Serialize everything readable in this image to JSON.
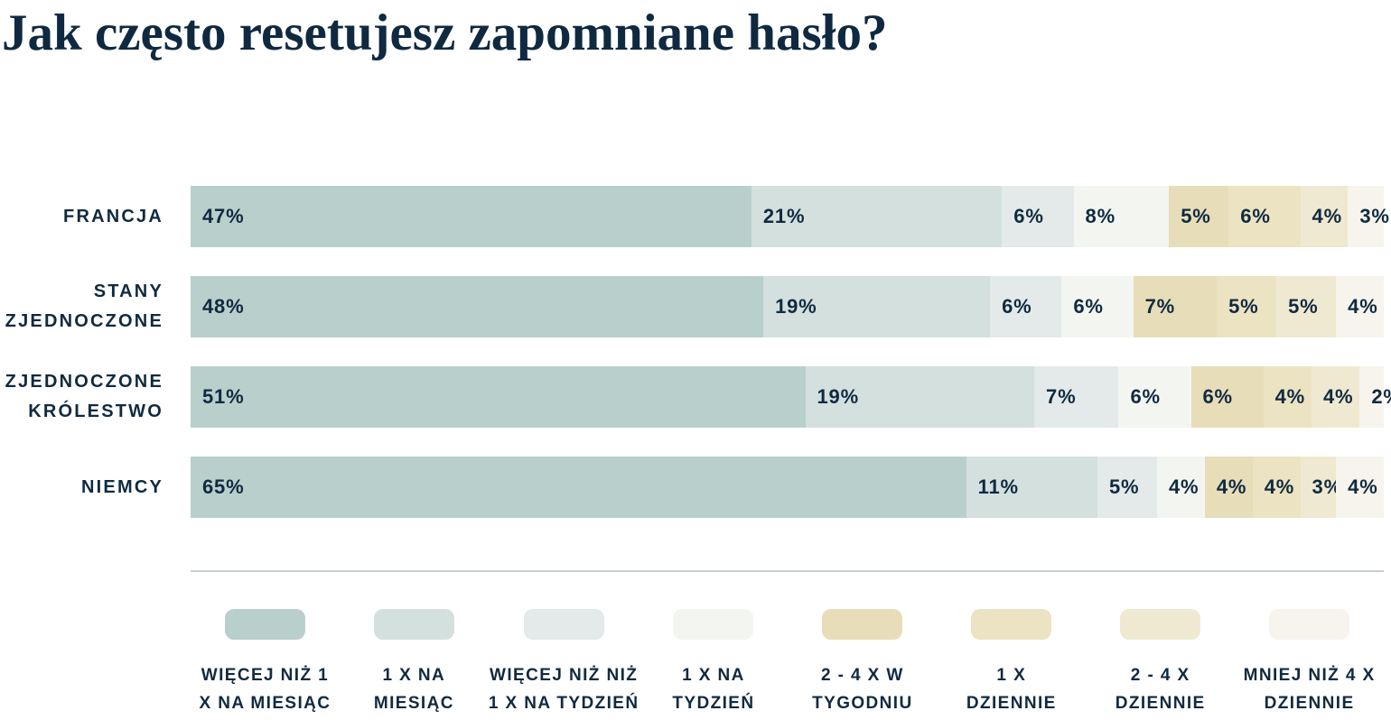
{
  "title": "Jak często resetujesz zapomniane hasło?",
  "colors": {
    "background": "#ffffff",
    "text": "#102a40",
    "title_text": "#0f2940",
    "divider": "#c6cfcb"
  },
  "palette": [
    "#b9cfcc",
    "#d3e0de",
    "#e3eae9",
    "#f3f5f1",
    "#e7ddb9",
    "#ece3c2",
    "#f0e9d2",
    "#f6f4ec"
  ],
  "chart_data": {
    "type": "bar",
    "stacked": true,
    "orientation": "horizontal",
    "title": "Jak często resetujesz zapomniane hasło?",
    "unit": "%",
    "xlim": [
      0,
      100
    ],
    "grid": false,
    "legend_position": "bottom",
    "categories": [
      "FRANCJA",
      "STANY ZJEDNOCZONE",
      "ZJEDNOCZONE KRÓLESTWO",
      "NIEMCY"
    ],
    "series": [
      {
        "name": "WIĘCEJ NIŻ 1 X NA MIESIĄC",
        "values": [
          47,
          48,
          51,
          65
        ]
      },
      {
        "name": "1 X NA MIESIĄC",
        "values": [
          21,
          19,
          19,
          11
        ]
      },
      {
        "name": "WIĘCEJ NIŻ NIŻ 1 X NA TYDZIEŃ",
        "values": [
          6,
          6,
          7,
          5
        ]
      },
      {
        "name": "1 X NA TYDZIEŃ",
        "values": [
          8,
          6,
          6,
          4
        ]
      },
      {
        "name": "2 - 4 X W TYGODNIU",
        "values": [
          5,
          7,
          6,
          4
        ]
      },
      {
        "name": "1 X DZIENNIE",
        "values": [
          6,
          5,
          4,
          4
        ]
      },
      {
        "name": "2 - 4 X DZIENNIE",
        "values": [
          4,
          5,
          4,
          3
        ]
      },
      {
        "name": "MNIEJ NIŻ 4 X DZIENNIE",
        "values": [
          3,
          4,
          2,
          4
        ]
      }
    ]
  },
  "rows": [
    {
      "label_lines": [
        "FRANCJA"
      ],
      "values": [
        47,
        21,
        6,
        8,
        5,
        6,
        4,
        3
      ]
    },
    {
      "label_lines": [
        "STANY",
        "ZJEDNOCZONE"
      ],
      "values": [
        48,
        19,
        6,
        6,
        7,
        5,
        5,
        4
      ]
    },
    {
      "label_lines": [
        "ZJEDNOCZONE",
        "KRÓLESTWO"
      ],
      "values": [
        51,
        19,
        7,
        6,
        6,
        4,
        4,
        2
      ]
    },
    {
      "label_lines": [
        "NIEMCY"
      ],
      "values": [
        65,
        11,
        5,
        4,
        4,
        4,
        3,
        4
      ]
    }
  ],
  "legend_items": [
    {
      "lines": [
        "WIĘCEJ NIŻ 1",
        "X NA MIESIĄC"
      ]
    },
    {
      "lines": [
        "1 X NA",
        "MIESIĄC"
      ]
    },
    {
      "lines": [
        "WIĘCEJ NIŻ NIŻ",
        "1 X NA TYDZIEŃ"
      ]
    },
    {
      "lines": [
        "1 X NA",
        "TYDZIEŃ"
      ]
    },
    {
      "lines": [
        "2 - 4 X W",
        "TYGODNIU"
      ]
    },
    {
      "lines": [
        "1 X",
        "DZIENNIE"
      ]
    },
    {
      "lines": [
        "2 - 4 X",
        "DZIENNIE"
      ]
    },
    {
      "lines": [
        "MNIEJ NIŻ 4 X",
        "DZIENNIE"
      ]
    }
  ]
}
